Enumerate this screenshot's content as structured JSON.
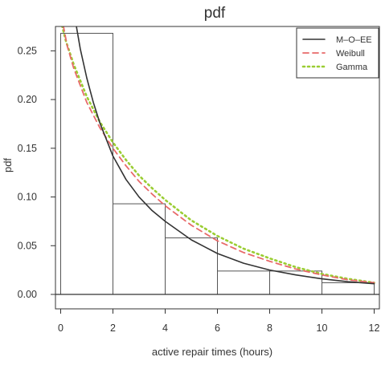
{
  "chart_data": {
    "type": "histogram",
    "title": "pdf",
    "xlabel": "active repair times (hours)",
    "ylabel": "pdf",
    "xlim": [
      -0.2,
      12.2
    ],
    "ylim": [
      0,
      0.275
    ],
    "x_ticks": [
      0,
      2,
      4,
      6,
      8,
      10,
      12
    ],
    "y_ticks": [
      0.0,
      0.05,
      0.1,
      0.15,
      0.2,
      0.25
    ],
    "y_tick_labels": [
      "0.00",
      "0.05",
      "0.10",
      "0.15",
      "0.20",
      "0.25"
    ],
    "histogram": {
      "bins": [
        [
          0,
          2
        ],
        [
          2,
          4
        ],
        [
          4,
          6
        ],
        [
          6,
          8
        ],
        [
          8,
          10
        ],
        [
          10,
          12
        ]
      ],
      "densities": [
        0.268,
        0.093,
        0.058,
        0.024,
        0.024,
        0.012
      ]
    },
    "series": [
      {
        "name": "M–O–EE",
        "color": "#333333",
        "style": "solid",
        "x": [
          0.55,
          0.75,
          1.0,
          1.25,
          1.5,
          2.0,
          2.5,
          3.0,
          3.5,
          4.0,
          5.0,
          6.0,
          7.0,
          8.0,
          9.0,
          10.0,
          11.0,
          12.0
        ],
        "y": [
          0.283,
          0.252,
          0.222,
          0.197,
          0.176,
          0.142,
          0.118,
          0.1,
          0.086,
          0.075,
          0.056,
          0.042,
          0.032,
          0.025,
          0.02,
          0.016,
          0.013,
          0.011
        ]
      },
      {
        "name": "Weibull",
        "color": "#e86a6a",
        "style": "dashed",
        "x": [
          0.1,
          0.25,
          0.5,
          1.0,
          1.5,
          2.0,
          2.5,
          3.0,
          3.5,
          4.0,
          5.0,
          6.0,
          7.0,
          8.0,
          9.0,
          10.0,
          11.0,
          12.0
        ],
        "y": [
          0.276,
          0.255,
          0.232,
          0.197,
          0.171,
          0.15,
          0.132,
          0.116,
          0.103,
          0.091,
          0.071,
          0.055,
          0.043,
          0.034,
          0.026,
          0.02,
          0.015,
          0.012
        ]
      },
      {
        "name": "Gamma",
        "color": "#9acd32",
        "style": "dotted",
        "x": [
          0.05,
          0.2,
          0.5,
          1.0,
          1.5,
          2.0,
          2.5,
          3.0,
          3.5,
          4.0,
          5.0,
          6.0,
          7.0,
          8.0,
          9.0,
          10.0,
          11.0,
          12.0
        ],
        "y": [
          0.276,
          0.26,
          0.236,
          0.203,
          0.177,
          0.156,
          0.138,
          0.122,
          0.109,
          0.097,
          0.076,
          0.06,
          0.047,
          0.037,
          0.028,
          0.021,
          0.016,
          0.012
        ]
      }
    ],
    "legend_position": "top-right",
    "grid": false
  }
}
